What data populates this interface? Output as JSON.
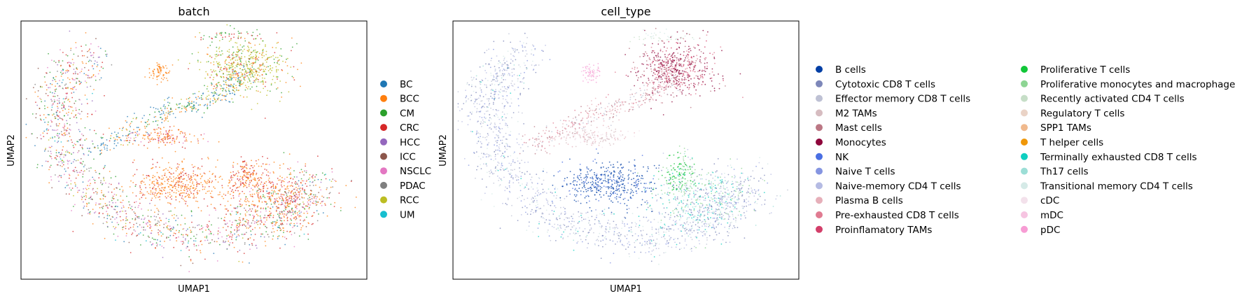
{
  "chart_data": [
    {
      "type": "scatter",
      "title": "batch",
      "xlabel": "UMAP1",
      "ylabel": "UMAP2",
      "grid": false,
      "legend_placement": "right",
      "legend": [
        {
          "name": "BC",
          "color": "#1f77b4"
        },
        {
          "name": "BCC",
          "color": "#ff7f0e"
        },
        {
          "name": "CM",
          "color": "#2ca02c"
        },
        {
          "name": "CRC",
          "color": "#d62728"
        },
        {
          "name": "HCC",
          "color": "#9467bd"
        },
        {
          "name": "ICC",
          "color": "#8c564b"
        },
        {
          "name": "NSCLC",
          "color": "#e377c2"
        },
        {
          "name": "PDAC",
          "color": "#7f7f7f"
        },
        {
          "name": "RCC",
          "color": "#bcbd22"
        },
        {
          "name": "UM",
          "color": "#17becf"
        }
      ]
    },
    {
      "type": "scatter",
      "title": "cell_type",
      "xlabel": "UMAP1",
      "ylabel": "UMAP2",
      "grid": false,
      "legend_placement": "right",
      "legend": [
        {
          "name": "B cells",
          "color": "#023fa5"
        },
        {
          "name": "Cytotoxic CD8 T cells",
          "color": "#7d87b9"
        },
        {
          "name": "Effector memory CD8 T cells",
          "color": "#bec1d4"
        },
        {
          "name": "M2 TAMs",
          "color": "#d6bcc0"
        },
        {
          "name": "Mast cells",
          "color": "#bb7784"
        },
        {
          "name": "Monocytes",
          "color": "#8e063b"
        },
        {
          "name": "NK",
          "color": "#4a6fe3"
        },
        {
          "name": "Naive T cells",
          "color": "#8595e1"
        },
        {
          "name": "Naive-memory CD4 T cells",
          "color": "#b5bbe3"
        },
        {
          "name": "Plasma B cells",
          "color": "#e6afb9"
        },
        {
          "name": "Pre-exhausted CD8 T cells",
          "color": "#e07b91"
        },
        {
          "name": "Proinflamatory TAMs",
          "color": "#d33f6a"
        },
        {
          "name": "Proliferative T cells",
          "color": "#11c638"
        },
        {
          "name": "Proliferative monocytes and macrophages",
          "color": "#8dd593"
        },
        {
          "name": "Recently activated CD4 T cells",
          "color": "#c6dec7"
        },
        {
          "name": "Regulatory T cells",
          "color": "#ead3c6"
        },
        {
          "name": "SPP1 TAMs",
          "color": "#f0b98d"
        },
        {
          "name": "T helper cells",
          "color": "#ef9708"
        },
        {
          "name": "Terminally exhausted CD8 T cells",
          "color": "#0fcfc0"
        },
        {
          "name": "Th17 cells",
          "color": "#9cded6"
        },
        {
          "name": "Transitional memory CD4 T cells",
          "color": "#d5eae7"
        },
        {
          "name": "cDC",
          "color": "#f3e1eb"
        },
        {
          "name": "mDC",
          "color": "#f6c4e1"
        },
        {
          "name": "pDC",
          "color": "#f79cd4"
        }
      ]
    }
  ]
}
